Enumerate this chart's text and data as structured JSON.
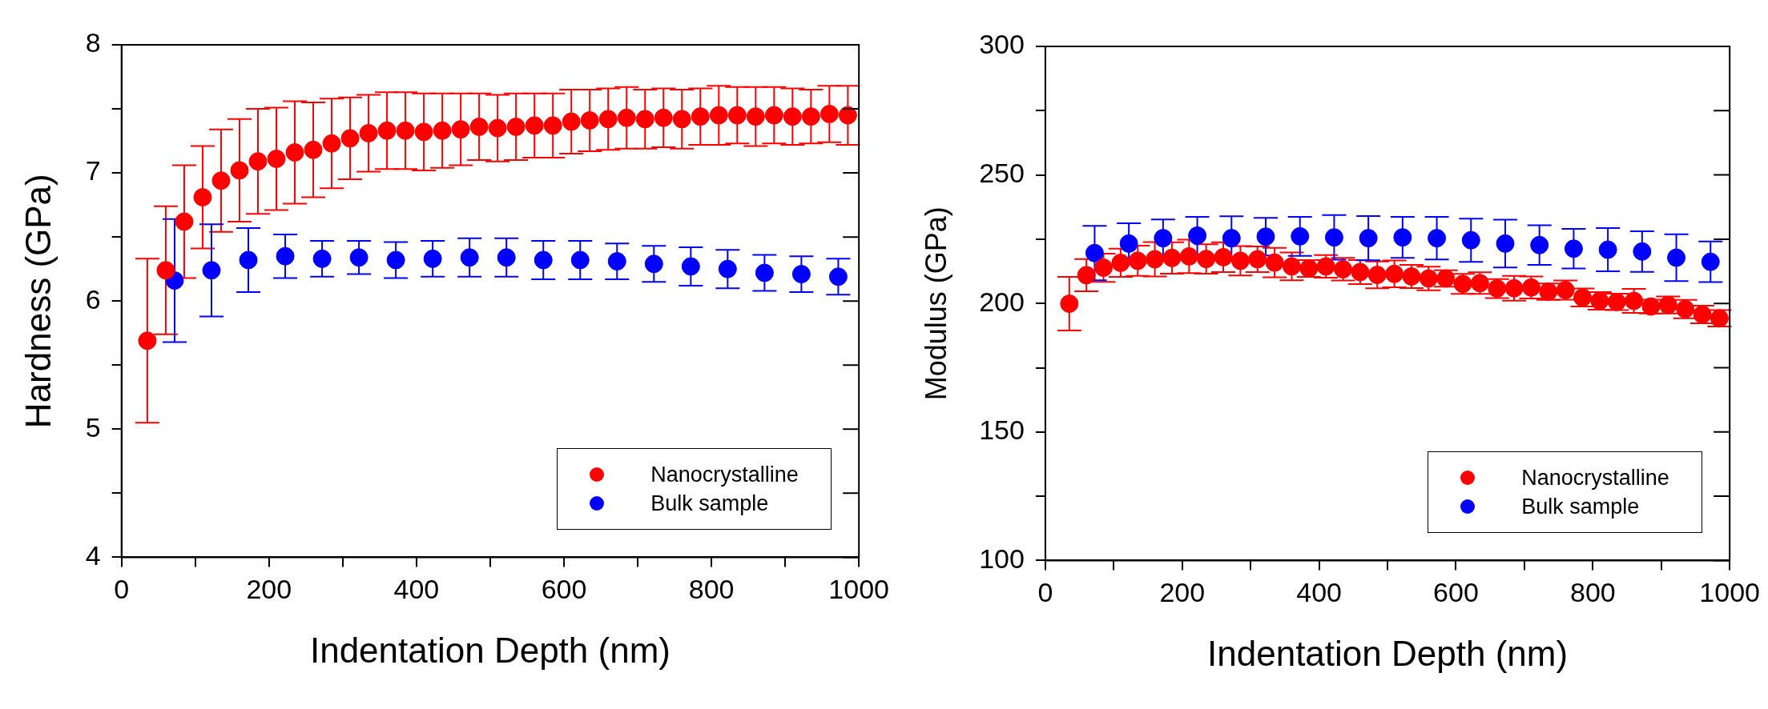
{
  "chart_data": [
    {
      "type": "scatter",
      "xlabel": "Indentation Depth (nm)",
      "ylabel": "Hardness (GPa)",
      "xlim": [
        0,
        1000
      ],
      "ylim": [
        4,
        8
      ],
      "xticks": [
        0,
        {
          "value": 100,
          "label": null
        },
        200,
        {
          "value": 300,
          "label": null
        },
        400,
        {
          "value": 500,
          "label": null
        },
        600,
        {
          "value": 700,
          "label": null
        },
        800,
        {
          "value": 900,
          "label": null
        },
        1000
      ],
      "yticks": [
        4,
        {
          "value": 4.5,
          "label": null
        },
        5,
        {
          "value": 5.5,
          "label": null
        },
        6,
        {
          "value": 6.5,
          "label": null
        },
        7,
        {
          "value": 7.5,
          "label": null
        },
        8
      ],
      "grid": false,
      "legend": "bottom right",
      "marker": "circle",
      "series": [
        {
          "name": "Nanocrystalline",
          "color": "#ff0000",
          "x": [
            35,
            60,
            85,
            110,
            135,
            160,
            185,
            210,
            235,
            260,
            285,
            310,
            335,
            360,
            385,
            410,
            435,
            460,
            485,
            510,
            535,
            560,
            585,
            610,
            635,
            660,
            685,
            710,
            735,
            760,
            785,
            810,
            835,
            860,
            885,
            910,
            935,
            960,
            985
          ],
          "values": [
            5.69,
            6.24,
            6.62,
            6.81,
            6.94,
            7.02,
            7.09,
            7.11,
            7.16,
            7.18,
            7.23,
            7.27,
            7.31,
            7.33,
            7.33,
            7.32,
            7.33,
            7.34,
            7.36,
            7.35,
            7.36,
            7.37,
            7.37,
            7.4,
            7.41,
            7.42,
            7.43,
            7.42,
            7.43,
            7.42,
            7.44,
            7.45,
            7.45,
            7.44,
            7.45,
            7.44,
            7.44,
            7.46,
            7.45
          ],
          "errors": [
            0.64,
            0.5,
            0.44,
            0.4,
            0.4,
            0.4,
            0.41,
            0.4,
            0.4,
            0.37,
            0.35,
            0.32,
            0.3,
            0.3,
            0.3,
            0.3,
            0.29,
            0.28,
            0.26,
            0.26,
            0.26,
            0.25,
            0.25,
            0.25,
            0.24,
            0.24,
            0.24,
            0.23,
            0.23,
            0.23,
            0.22,
            0.23,
            0.22,
            0.23,
            0.22,
            0.22,
            0.21,
            0.22,
            0.23
          ]
        },
        {
          "name": "Bulk sample",
          "color": "#0000ff",
          "x": [
            72,
            122,
            172,
            222,
            272,
            322,
            372,
            422,
            472,
            522,
            572,
            622,
            672,
            722,
            772,
            822,
            872,
            922,
            972
          ],
          "values": [
            6.16,
            6.24,
            6.32,
            6.35,
            6.33,
            6.34,
            6.32,
            6.33,
            6.34,
            6.34,
            6.32,
            6.32,
            6.31,
            6.29,
            6.27,
            6.25,
            6.22,
            6.21,
            6.19
          ],
          "errors": [
            0.48,
            0.36,
            0.25,
            0.17,
            0.14,
            0.13,
            0.14,
            0.14,
            0.15,
            0.15,
            0.15,
            0.15,
            0.14,
            0.14,
            0.15,
            0.15,
            0.14,
            0.14,
            0.14
          ]
        }
      ]
    },
    {
      "type": "scatter",
      "xlabel": "Indentation Depth (nm)",
      "ylabel": "Modulus (GPa)",
      "xlim": [
        0,
        1000
      ],
      "ylim": [
        100,
        300
      ],
      "xticks": [
        0,
        {
          "value": 100,
          "label": null
        },
        200,
        {
          "value": 300,
          "label": null
        },
        400,
        {
          "value": 500,
          "label": null
        },
        600,
        {
          "value": 700,
          "label": null
        },
        800,
        {
          "value": 900,
          "label": null
        },
        1000
      ],
      "yticks": [
        100,
        {
          "value": 125,
          "label": null
        },
        150,
        {
          "value": 175,
          "label": null
        },
        200,
        {
          "value": 225,
          "label": null
        },
        250,
        {
          "value": 275,
          "label": null
        },
        300
      ],
      "grid": false,
      "legend": "bottom right",
      "marker": "circle",
      "series": [
        {
          "name": "Nanocrystalline",
          "color": "#ff0000",
          "x": [
            35,
            60,
            85,
            110,
            135,
            160,
            185,
            210,
            235,
            260,
            285,
            310,
            335,
            360,
            385,
            410,
            435,
            460,
            485,
            510,
            535,
            560,
            585,
            610,
            635,
            660,
            685,
            710,
            735,
            760,
            785,
            810,
            835,
            860,
            885,
            910,
            935,
            960,
            985
          ],
          "values": [
            199.9,
            211,
            213.9,
            215.8,
            216.6,
            217.2,
            217.7,
            218.3,
            217.3,
            218,
            216.6,
            217.2,
            215.9,
            214.4,
            213.6,
            214.4,
            213.3,
            212.2,
            211.1,
            211.5,
            210.5,
            209.7,
            209.7,
            207.6,
            207.9,
            205.8,
            205.9,
            206.2,
            204.6,
            205.2,
            202.3,
            201,
            200.6,
            201,
            198.8,
            199.4,
            197.8,
            195.7,
            194.2
          ],
          "errors": [
            10.4,
            6.3,
            5.5,
            5.5,
            5.9,
            6.7,
            6.1,
            6.5,
            5.7,
            5.8,
            5.7,
            5,
            5.7,
            5.4,
            3.3,
            4.4,
            4.4,
            4.7,
            5.2,
            5.2,
            4.5,
            4.6,
            3.2,
            3.9,
            4.2,
            3.7,
            4.8,
            4.3,
            3.2,
            3.7,
            3.5,
            3.4,
            3.2,
            4.7,
            2.7,
            3.3,
            3.6,
            3.4,
            3.2
          ]
        },
        {
          "name": "Bulk sample",
          "color": "#0000ff",
          "x": [
            72,
            122,
            172,
            222,
            272,
            322,
            372,
            422,
            472,
            522,
            572,
            622,
            672,
            722,
            772,
            822,
            872,
            922,
            972
          ],
          "values": [
            219.6,
            223.3,
            225.4,
            226.4,
            225.4,
            226,
            226.1,
            225.7,
            225.4,
            225.7,
            225.4,
            224.6,
            223.3,
            222.7,
            221.3,
            220.9,
            220.2,
            217.8,
            216.2
          ],
          "errors": [
            10.6,
            7.9,
            7.3,
            7.3,
            8.5,
            7.3,
            7.6,
            8.7,
            8.6,
            8,
            8.3,
            8.4,
            9.3,
            7.7,
            7.7,
            8.4,
            7.9,
            9.1,
            7.9
          ]
        }
      ]
    }
  ]
}
